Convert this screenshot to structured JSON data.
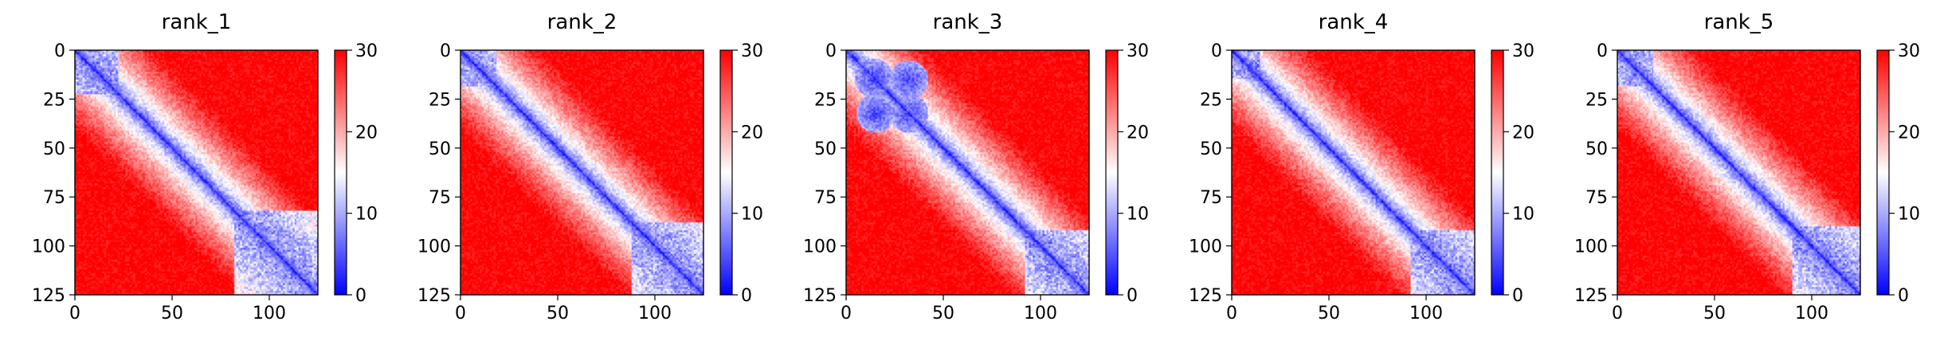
{
  "figure": {
    "colormap": [
      "#0000ff",
      "#ffffff",
      "#ff0000"
    ],
    "colorbar": {
      "min": 0,
      "max": 30,
      "ticks": [
        0,
        10,
        20,
        30
      ]
    }
  },
  "chart_data": [
    {
      "type": "heatmap",
      "title": "rank_1",
      "xlabel": "",
      "ylabel": "",
      "xlim": [
        0,
        125
      ],
      "ylim": [
        125,
        0
      ],
      "xticks": [
        0,
        50,
        100
      ],
      "yticks": [
        0,
        25,
        50,
        75,
        100,
        125
      ],
      "size": 125,
      "domains": [
        [
          0,
          22
        ],
        [
          82,
          125
        ]
      ],
      "blobs": []
    },
    {
      "type": "heatmap",
      "title": "rank_2",
      "xlabel": "",
      "ylabel": "",
      "xlim": [
        0,
        125
      ],
      "ylim": [
        125,
        0
      ],
      "xticks": [
        0,
        50,
        100
      ],
      "yticks": [
        0,
        25,
        50,
        75,
        100,
        125
      ],
      "size": 125,
      "domains": [
        [
          0,
          18
        ],
        [
          88,
          125
        ]
      ],
      "blobs": []
    },
    {
      "type": "heatmap",
      "title": "rank_3",
      "xlabel": "",
      "ylabel": "",
      "xlim": [
        0,
        125
      ],
      "ylim": [
        125,
        0
      ],
      "xticks": [
        0,
        50,
        100
      ],
      "yticks": [
        0,
        25,
        50,
        75,
        100,
        125
      ],
      "size": 125,
      "domains": [
        [
          92,
          125
        ]
      ],
      "blobs": [
        [
          15,
          32
        ],
        [
          32,
          15
        ],
        [
          14,
          14
        ],
        [
          32,
          32
        ]
      ]
    },
    {
      "type": "heatmap",
      "title": "rank_4",
      "xlabel": "",
      "ylabel": "",
      "xlim": [
        0,
        125
      ],
      "ylim": [
        125,
        0
      ],
      "xticks": [
        0,
        50,
        100
      ],
      "yticks": [
        0,
        25,
        50,
        75,
        100,
        125
      ],
      "size": 125,
      "domains": [
        [
          0,
          14
        ],
        [
          92,
          125
        ]
      ],
      "blobs": []
    },
    {
      "type": "heatmap",
      "title": "rank_5",
      "xlabel": "",
      "ylabel": "",
      "xlim": [
        0,
        125
      ],
      "ylim": [
        125,
        0
      ],
      "xticks": [
        0,
        50,
        100
      ],
      "yticks": [
        0,
        25,
        50,
        75,
        100,
        125
      ],
      "size": 125,
      "domains": [
        [
          0,
          18
        ],
        [
          90,
          125
        ]
      ],
      "blobs": []
    }
  ]
}
